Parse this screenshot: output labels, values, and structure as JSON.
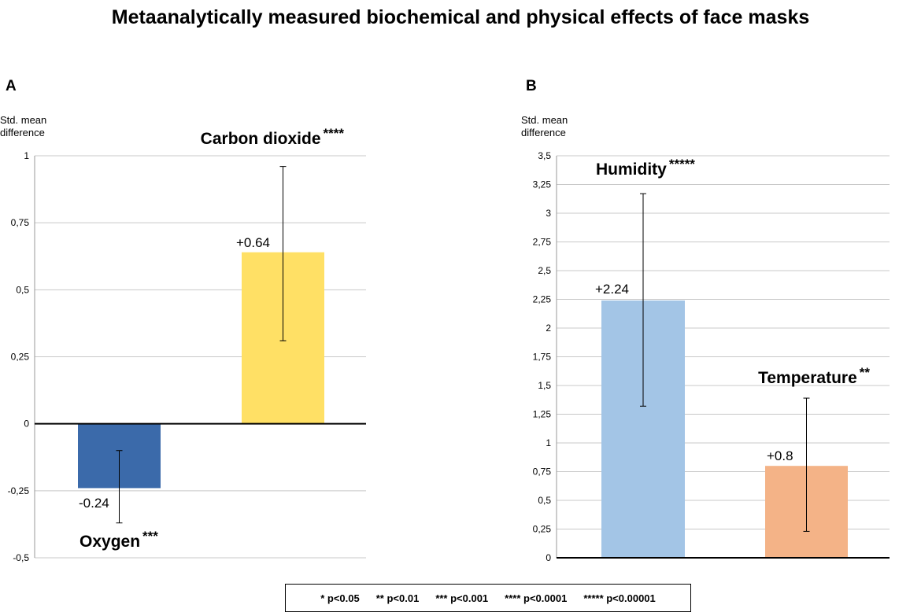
{
  "figure_title": "Metaanalytically measured biochemical and physical effects of face masks",
  "chart_data": [
    {
      "type": "bar",
      "panel": "A",
      "ylabel_lines": [
        "Std. mean",
        "difference"
      ],
      "ylim": [
        -0.5,
        1
      ],
      "ticks": [
        {
          "v": 1,
          "label": "1"
        },
        {
          "v": 0.75,
          "label": "0,75"
        },
        {
          "v": 0.5,
          "label": "0,5"
        },
        {
          "v": 0.25,
          "label": "0,25"
        },
        {
          "v": 0,
          "label": "0"
        },
        {
          "v": -0.25,
          "label": "-0,25"
        },
        {
          "v": -0.5,
          "label": "-0,5"
        }
      ],
      "bars": [
        {
          "name": "Oxygen",
          "stars": "***",
          "value": -0.24,
          "value_label": "-0.24",
          "ci": [
            -0.37,
            -0.1
          ],
          "color": "#3b6aaa"
        },
        {
          "name": "Carbon dioxide",
          "stars": "****",
          "value": 0.64,
          "value_label": "+0.64",
          "ci": [
            0.31,
            0.96
          ],
          "color": "#ffe065"
        }
      ]
    },
    {
      "type": "bar",
      "panel": "B",
      "ylabel_lines": [
        "Std. mean",
        "difference"
      ],
      "ylim": [
        0,
        3.5
      ],
      "ticks": [
        {
          "v": 3.5,
          "label": "3,5"
        },
        {
          "v": 3.25,
          "label": "3,25"
        },
        {
          "v": 3,
          "label": "3"
        },
        {
          "v": 2.75,
          "label": "2,75"
        },
        {
          "v": 2.5,
          "label": "2,5"
        },
        {
          "v": 2.25,
          "label": "2,25"
        },
        {
          "v": 2,
          "label": "2"
        },
        {
          "v": 1.75,
          "label": "1,75"
        },
        {
          "v": 1.5,
          "label": "1,5"
        },
        {
          "v": 1.25,
          "label": "1,25"
        },
        {
          "v": 1,
          "label": "1"
        },
        {
          "v": 0.75,
          "label": "0,75"
        },
        {
          "v": 0.5,
          "label": "0,5"
        },
        {
          "v": 0.25,
          "label": "0,25"
        },
        {
          "v": 0,
          "label": "0"
        }
      ],
      "bars": [
        {
          "name": "Humidity",
          "stars": "*****",
          "value": 2.24,
          "value_label": "+2.24",
          "ci": [
            1.32,
            3.17
          ],
          "color": "#a3c5e6"
        },
        {
          "name": "Temperature",
          "stars": "**",
          "value": 0.8,
          "value_label": "+0.8",
          "ci": [
            0.23,
            1.39
          ],
          "color": "#f4b387"
        }
      ]
    }
  ],
  "legend": [
    "* p<0.05",
    "** p<0.01",
    "*** p<0.001",
    "**** p<0.0001",
    "***** p<0.00001"
  ]
}
